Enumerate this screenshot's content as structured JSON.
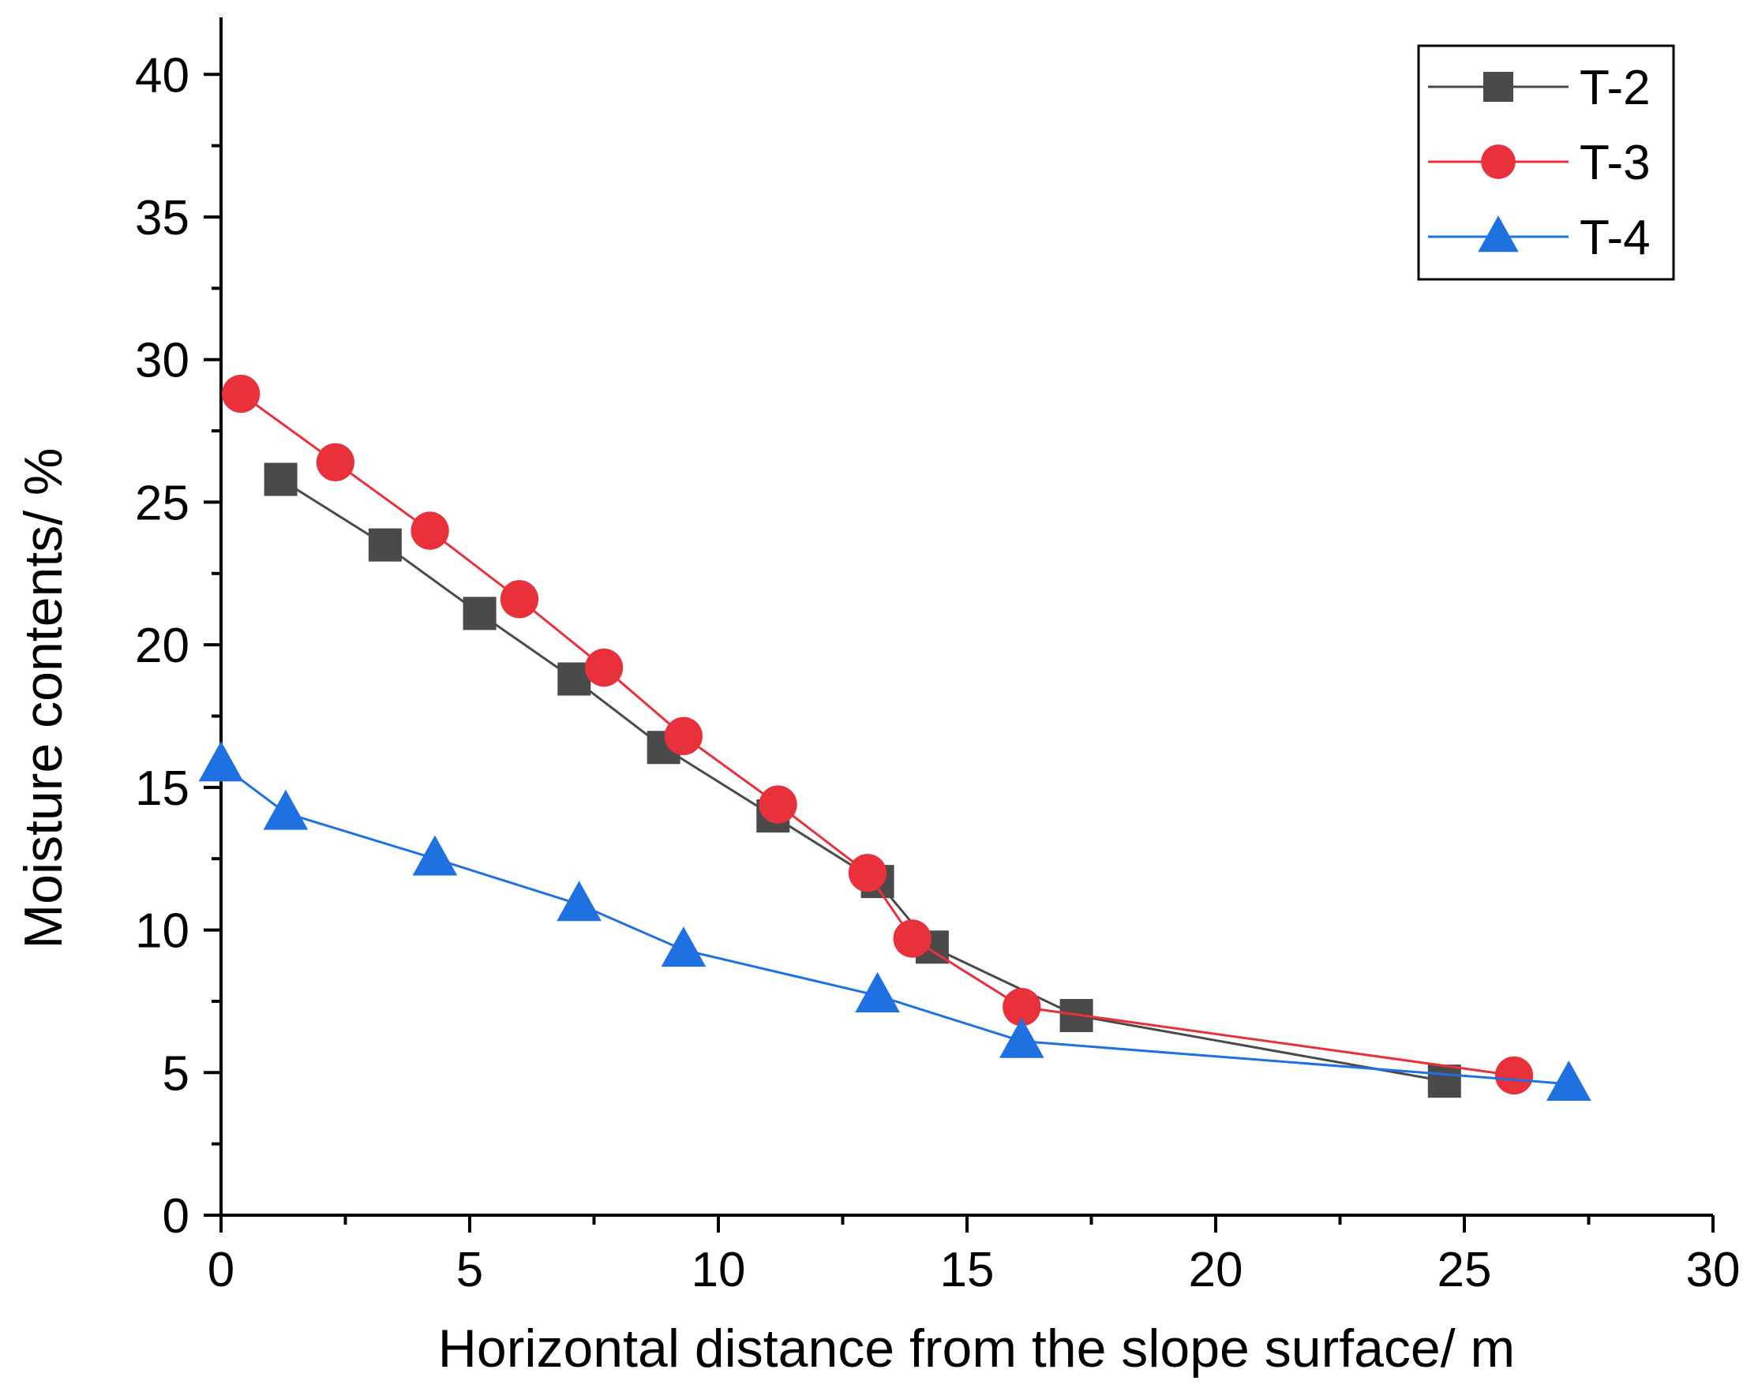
{
  "chart_data": {
    "type": "line",
    "title": "",
    "xlabel": "Horizontal distance from the slope surface/ m",
    "ylabel": "Moisture contents/ %",
    "xlim": [
      0,
      30
    ],
    "ylim": [
      0,
      42
    ],
    "xticks": [
      0,
      5,
      10,
      15,
      20,
      25,
      30
    ],
    "yticks": [
      0,
      5,
      10,
      15,
      20,
      25,
      30,
      35,
      40
    ],
    "xtick_labels": [
      "0",
      "5",
      "10",
      "15",
      "20",
      "25",
      "30"
    ],
    "ytick_labels": [
      "0",
      "5",
      "10",
      "15",
      "20",
      "25",
      "30",
      "35",
      "40"
    ],
    "grid": false,
    "legend_position": "top-right",
    "series": [
      {
        "name": "T-2",
        "marker": "square",
        "color": "#4a4a4a",
        "x": [
          1.2,
          3.3,
          5.2,
          7.1,
          8.9,
          11.1,
          13.2,
          14.3,
          17.2,
          24.6
        ],
        "y": [
          25.8,
          23.5,
          21.1,
          18.8,
          16.4,
          14.0,
          11.7,
          9.4,
          7.0,
          4.7
        ]
      },
      {
        "name": "T-3",
        "marker": "circle",
        "color": "#e8313a",
        "x": [
          0.4,
          2.3,
          4.2,
          6.0,
          7.7,
          9.3,
          11.2,
          13.0,
          13.9,
          16.1,
          26.0
        ],
        "y": [
          28.8,
          26.4,
          24.0,
          21.6,
          19.2,
          16.8,
          14.4,
          12.0,
          9.7,
          7.3,
          4.9
        ]
      },
      {
        "name": "T-4",
        "marker": "triangle",
        "color": "#1f70e0",
        "x": [
          0.0,
          1.3,
          4.3,
          7.2,
          9.3,
          13.2,
          16.1,
          27.1
        ],
        "y": [
          15.8,
          14.1,
          12.5,
          10.9,
          9.3,
          7.7,
          6.1,
          4.6
        ]
      }
    ]
  }
}
